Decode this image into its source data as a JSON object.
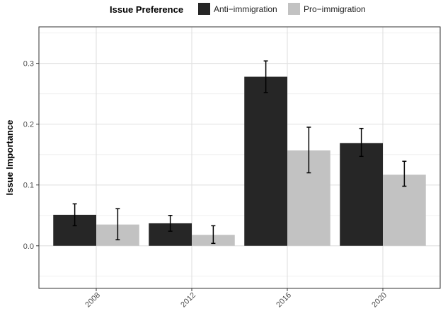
{
  "chart_data": {
    "type": "bar",
    "title": "",
    "xlabel": "",
    "ylabel": "Issue Importance",
    "categories": [
      "2008",
      "2012",
      "2016",
      "2020"
    ],
    "legend_title": "Issue Preference",
    "legend_position": "top",
    "grid": true,
    "ylim": [
      -0.07,
      0.36
    ],
    "yticks": [
      "0.0",
      "0.1",
      "0.2",
      "0.3"
    ],
    "series": [
      {
        "name": "Anti−immigration",
        "color": "#262626",
        "values": [
          0.051,
          0.037,
          0.278,
          0.169
        ],
        "error_low": [
          0.033,
          0.024,
          0.252,
          0.147
        ],
        "error_high": [
          0.069,
          0.05,
          0.304,
          0.193
        ]
      },
      {
        "name": "Pro−immigration",
        "color": "#c2c2c2",
        "values": [
          0.035,
          0.018,
          0.157,
          0.117
        ],
        "error_low": [
          0.01,
          0.004,
          0.12,
          0.098
        ],
        "error_high": [
          0.061,
          0.033,
          0.195,
          0.139
        ]
      }
    ]
  }
}
